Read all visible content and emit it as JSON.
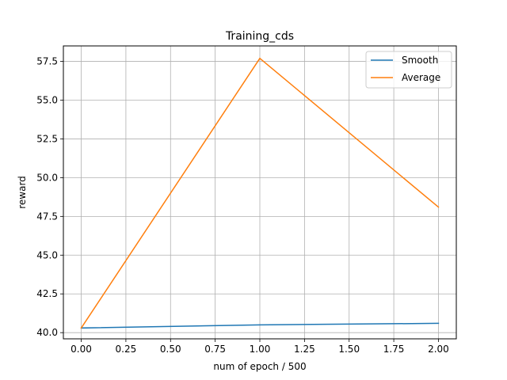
{
  "chart_data": {
    "type": "line",
    "title": "Training_cds",
    "xlabel": "num of epoch / 500",
    "ylabel": "reward",
    "xlim": [
      -0.1,
      2.1
    ],
    "ylim": [
      39.6,
      58.5
    ],
    "x_ticks": [
      0.0,
      0.25,
      0.5,
      0.75,
      1.0,
      1.25,
      1.5,
      1.75,
      2.0
    ],
    "x_tick_labels": [
      "0.00",
      "0.25",
      "0.50",
      "0.75",
      "1.00",
      "1.25",
      "1.50",
      "1.75",
      "2.00"
    ],
    "y_ticks": [
      40.0,
      42.5,
      45.0,
      47.5,
      50.0,
      52.5,
      55.0,
      57.5
    ],
    "y_tick_labels": [
      "40.0",
      "42.5",
      "45.0",
      "47.5",
      "50.0",
      "52.5",
      "55.0",
      "57.5"
    ],
    "grid": true,
    "legend_position": "top-right",
    "series": [
      {
        "name": "Smooth",
        "color": "#1f77b4",
        "x": [
          0,
          1,
          2
        ],
        "y": [
          40.3,
          40.5,
          40.6
        ]
      },
      {
        "name": "Average",
        "color": "#ff7f0e",
        "x": [
          0,
          1,
          2
        ],
        "y": [
          40.3,
          57.7,
          48.1
        ]
      }
    ]
  }
}
